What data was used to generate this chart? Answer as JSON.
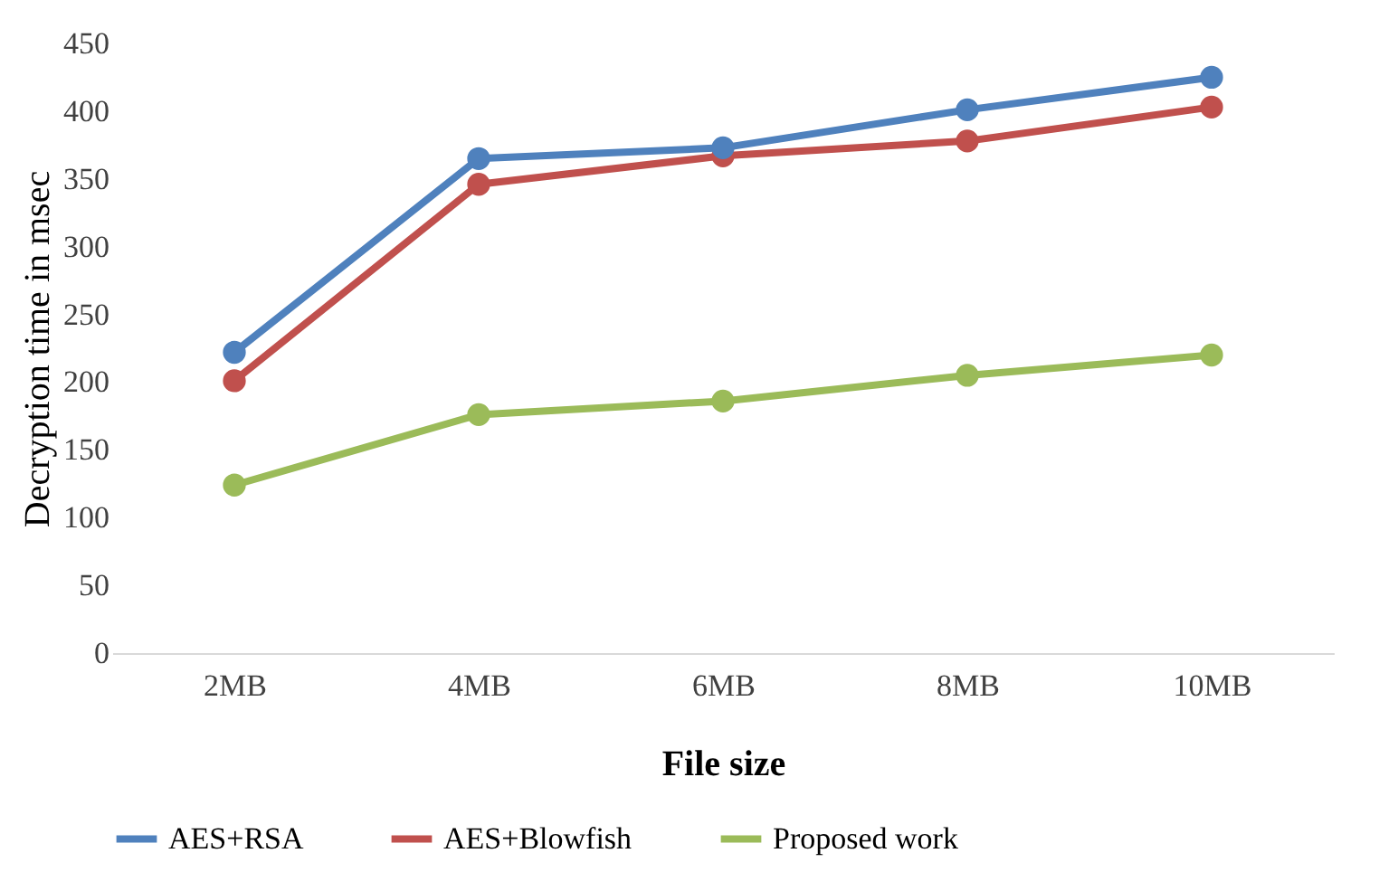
{
  "chart_data": {
    "type": "line",
    "xlabel": "File size",
    "ylabel": "Decryption time in msec",
    "categories": [
      "2MB",
      "4MB",
      "6MB",
      "8MB",
      "10MB"
    ],
    "series": [
      {
        "name": "AES+RSA",
        "color": "#4f81bd",
        "values": [
          222,
          365,
          373,
          401,
          425
        ]
      },
      {
        "name": "AES+Blowfish",
        "color": "#c0504d",
        "values": [
          201,
          346,
          367,
          378,
          403
        ]
      },
      {
        "name": "Proposed work",
        "color": "#9bbb59",
        "values": [
          124,
          176,
          186,
          205,
          220
        ]
      }
    ],
    "ylim": [
      0,
      450
    ],
    "yticks": [
      0,
      50,
      100,
      150,
      200,
      250,
      300,
      350,
      400,
      450
    ],
    "grid": false,
    "legend": "bottom",
    "marker": "circle",
    "line_style": "solid"
  }
}
